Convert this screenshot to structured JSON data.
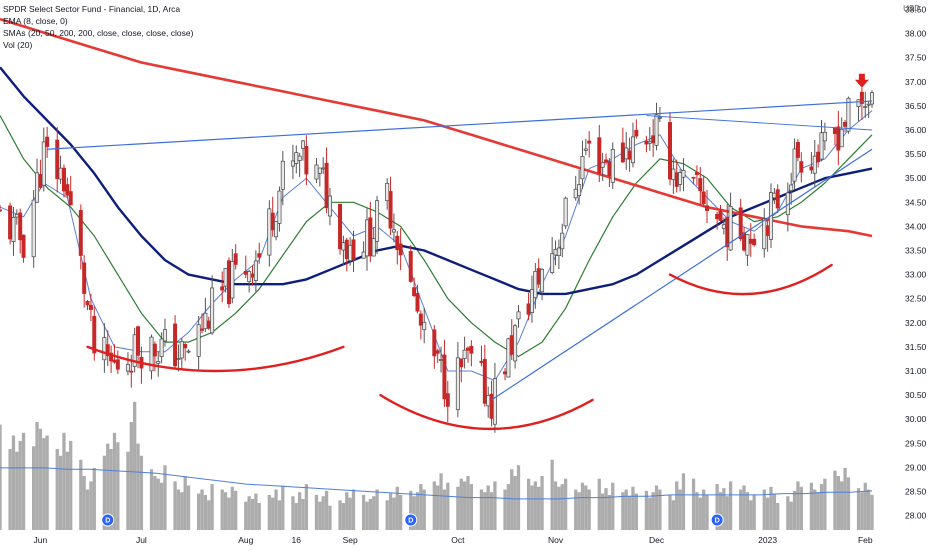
{
  "legend": {
    "title": "SPDR Select Sector Fund - Financial, 1D, Arca",
    "ema": "EMA (8, close, 0)",
    "smas": "SMAs (20, 50, 200, 200, close, close, close, close)",
    "vol": "Vol (20)"
  },
  "currency": "USD",
  "colors": {
    "up": "#e8e8e8",
    "down": "#c62828",
    "ema8": "#5b7fd6",
    "sma20": "#2e7d32",
    "sma50": "#0d1f7a",
    "sma200": "#e53935",
    "trendline": "#3d6fdb",
    "annotation": "#e02020",
    "volume": "#9e9e9e"
  },
  "chart_data": {
    "type": "candlestick",
    "symbol": "SPDR Select Sector Fund - Financial",
    "interval": "1D",
    "exchange": "Arca",
    "y_axis": {
      "min": 28.0,
      "max": 38.5,
      "ticks": [
        "28.00",
        "28.50",
        "29.00",
        "29.50",
        "30.00",
        "30.50",
        "31.00",
        "31.50",
        "32.00",
        "32.50",
        "33.00",
        "33.50",
        "34.00",
        "34.50",
        "35.00",
        "35.50",
        "36.00",
        "36.50",
        "37.00",
        "37.50",
        "38.00",
        "38.50"
      ]
    },
    "x_axis": {
      "range": [
        "2022-05-20",
        "2023-02-03"
      ],
      "ticks": [
        {
          "label": "Jun",
          "date": "2022-06-01"
        },
        {
          "label": "Jul",
          "date": "2022-07-01"
        },
        {
          "label": "Aug",
          "date": "2022-08-01"
        },
        {
          "label": "16",
          "date": "2022-08-16"
        },
        {
          "label": "Sep",
          "date": "2022-09-01"
        },
        {
          "label": "Oct",
          "date": "2022-10-03"
        },
        {
          "label": "Nov",
          "date": "2022-11-01"
        },
        {
          "label": "Dec",
          "date": "2022-12-01"
        },
        {
          "label": "2023",
          "date": "2023-01-03"
        },
        {
          "label": "Feb",
          "date": "2023-02-01"
        }
      ]
    },
    "close_path": [
      [
        "2022-05-20",
        34.2
      ],
      [
        "2022-05-27",
        33.7
      ],
      [
        "2022-06-02",
        35.5
      ],
      [
        "2022-06-08",
        35.0
      ],
      [
        "2022-06-13",
        33.2
      ],
      [
        "2022-06-17",
        31.4
      ],
      [
        "2022-06-23",
        31.1
      ],
      [
        "2022-06-30",
        31.5
      ],
      [
        "2022-07-08",
        31.5
      ],
      [
        "2022-07-14",
        31.3
      ],
      [
        "2022-07-22",
        32.3
      ],
      [
        "2022-07-29",
        33.0
      ],
      [
        "2022-08-05",
        33.4
      ],
      [
        "2022-08-12",
        35.0
      ],
      [
        "2022-08-17",
        35.4
      ],
      [
        "2022-08-24",
        34.9
      ],
      [
        "2022-08-31",
        33.6
      ],
      [
        "2022-09-07",
        33.8
      ],
      [
        "2022-09-12",
        34.6
      ],
      [
        "2022-09-16",
        33.6
      ],
      [
        "2022-09-23",
        31.6
      ],
      [
        "2022-09-30",
        30.7
      ],
      [
        "2022-10-06",
        31.2
      ],
      [
        "2022-10-13",
        30.4
      ],
      [
        "2022-10-19",
        31.6
      ],
      [
        "2022-10-26",
        32.8
      ],
      [
        "2022-11-02",
        33.8
      ],
      [
        "2022-11-10",
        35.6
      ],
      [
        "2022-11-17",
        35.3
      ],
      [
        "2022-11-23",
        35.7
      ],
      [
        "2022-12-01",
        36.0
      ],
      [
        "2022-12-08",
        34.9
      ],
      [
        "2022-12-15",
        34.6
      ],
      [
        "2022-12-21",
        34.0
      ],
      [
        "2022-12-29",
        33.9
      ],
      [
        "2023-01-05",
        34.4
      ],
      [
        "2023-01-12",
        35.5
      ],
      [
        "2023-01-19",
        35.5
      ],
      [
        "2023-01-26",
        36.2
      ],
      [
        "2023-02-02",
        36.7
      ]
    ],
    "series": [
      {
        "name": "EMA (8, close, 0)",
        "type": "line",
        "color": "#5b7fd6",
        "points": [
          [
            "2022-05-20",
            34.4
          ],
          [
            "2022-05-27",
            34.2
          ],
          [
            "2022-06-02",
            34.9
          ],
          [
            "2022-06-09",
            34.6
          ],
          [
            "2022-06-16",
            32.5
          ],
          [
            "2022-06-23",
            31.5
          ],
          [
            "2022-07-01",
            31.4
          ],
          [
            "2022-07-08",
            31.4
          ],
          [
            "2022-07-15",
            31.8
          ],
          [
            "2022-07-22",
            32.4
          ],
          [
            "2022-07-29",
            32.9
          ],
          [
            "2022-08-05",
            33.3
          ],
          [
            "2022-08-12",
            34.6
          ],
          [
            "2022-08-19",
            35.0
          ],
          [
            "2022-08-26",
            34.4
          ],
          [
            "2022-09-02",
            33.8
          ],
          [
            "2022-09-09",
            34.0
          ],
          [
            "2022-09-16",
            33.6
          ],
          [
            "2022-09-23",
            32.3
          ],
          [
            "2022-09-30",
            31.0
          ],
          [
            "2022-10-07",
            31.0
          ],
          [
            "2022-10-14",
            30.8
          ],
          [
            "2022-10-21",
            31.6
          ],
          [
            "2022-10-28",
            32.8
          ],
          [
            "2022-11-04",
            33.8
          ],
          [
            "2022-11-11",
            35.2
          ],
          [
            "2022-11-18",
            35.4
          ],
          [
            "2022-11-25",
            35.7
          ],
          [
            "2022-12-02",
            35.9
          ],
          [
            "2022-12-09",
            35.1
          ],
          [
            "2022-12-16",
            34.6
          ],
          [
            "2022-12-23",
            34.1
          ],
          [
            "2022-12-30",
            33.9
          ],
          [
            "2023-01-06",
            34.3
          ],
          [
            "2023-01-13",
            35.2
          ],
          [
            "2023-01-20",
            35.4
          ],
          [
            "2023-01-27",
            36.0
          ],
          [
            "2023-02-03",
            36.4
          ]
        ]
      },
      {
        "name": "SMA 20",
        "type": "line",
        "color": "#2e7d32",
        "points": [
          [
            "2022-05-20",
            36.3
          ],
          [
            "2022-05-27",
            35.4
          ],
          [
            "2022-06-03",
            34.8
          ],
          [
            "2022-06-10",
            34.4
          ],
          [
            "2022-06-17",
            33.8
          ],
          [
            "2022-06-24",
            33.0
          ],
          [
            "2022-07-01",
            32.2
          ],
          [
            "2022-07-08",
            31.6
          ],
          [
            "2022-07-15",
            31.6
          ],
          [
            "2022-07-22",
            31.8
          ],
          [
            "2022-07-29",
            32.2
          ],
          [
            "2022-08-05",
            32.7
          ],
          [
            "2022-08-12",
            33.4
          ],
          [
            "2022-08-19",
            34.1
          ],
          [
            "2022-08-26",
            34.5
          ],
          [
            "2022-09-02",
            34.5
          ],
          [
            "2022-09-09",
            34.3
          ],
          [
            "2022-09-16",
            34.0
          ],
          [
            "2022-09-23",
            33.3
          ],
          [
            "2022-09-30",
            32.5
          ],
          [
            "2022-10-07",
            32.0
          ],
          [
            "2022-10-14",
            31.6
          ],
          [
            "2022-10-21",
            31.3
          ],
          [
            "2022-10-28",
            31.6
          ],
          [
            "2022-11-04",
            32.3
          ],
          [
            "2022-11-11",
            33.3
          ],
          [
            "2022-11-18",
            34.2
          ],
          [
            "2022-11-25",
            34.9
          ],
          [
            "2022-12-02",
            35.4
          ],
          [
            "2022-12-09",
            35.3
          ],
          [
            "2022-12-16",
            35.0
          ],
          [
            "2022-12-23",
            34.4
          ],
          [
            "2022-12-30",
            34.1
          ],
          [
            "2023-01-06",
            34.2
          ],
          [
            "2023-01-13",
            34.5
          ],
          [
            "2023-01-20",
            34.9
          ],
          [
            "2023-01-27",
            35.4
          ],
          [
            "2023-02-03",
            35.9
          ]
        ]
      },
      {
        "name": "SMA 50",
        "type": "line",
        "color": "#0d1f7a",
        "points": [
          [
            "2022-05-20",
            37.3
          ],
          [
            "2022-05-27",
            36.7
          ],
          [
            "2022-06-03",
            36.2
          ],
          [
            "2022-06-10",
            35.7
          ],
          [
            "2022-06-17",
            35.1
          ],
          [
            "2022-06-24",
            34.4
          ],
          [
            "2022-07-01",
            33.8
          ],
          [
            "2022-07-08",
            33.3
          ],
          [
            "2022-07-15",
            33.0
          ],
          [
            "2022-07-22",
            32.9
          ],
          [
            "2022-07-29",
            32.8
          ],
          [
            "2022-08-05",
            32.8
          ],
          [
            "2022-08-12",
            32.8
          ],
          [
            "2022-08-19",
            32.9
          ],
          [
            "2022-08-26",
            33.1
          ],
          [
            "2022-09-02",
            33.3
          ],
          [
            "2022-09-09",
            33.5
          ],
          [
            "2022-09-16",
            33.6
          ],
          [
            "2022-09-23",
            33.5
          ],
          [
            "2022-09-30",
            33.3
          ],
          [
            "2022-10-07",
            33.1
          ],
          [
            "2022-10-14",
            32.9
          ],
          [
            "2022-10-21",
            32.7
          ],
          [
            "2022-10-28",
            32.6
          ],
          [
            "2022-11-04",
            32.6
          ],
          [
            "2022-11-11",
            32.7
          ],
          [
            "2022-11-18",
            32.8
          ],
          [
            "2022-11-25",
            33.0
          ],
          [
            "2022-12-02",
            33.3
          ],
          [
            "2022-12-09",
            33.6
          ],
          [
            "2022-12-16",
            33.9
          ],
          [
            "2022-12-23",
            34.2
          ],
          [
            "2022-12-30",
            34.4
          ],
          [
            "2023-01-06",
            34.6
          ],
          [
            "2023-01-13",
            34.8
          ],
          [
            "2023-01-20",
            35.0
          ],
          [
            "2023-01-27",
            35.1
          ],
          [
            "2023-02-03",
            35.2
          ]
        ]
      },
      {
        "name": "SMA 200",
        "type": "line",
        "color": "#e53935",
        "points": [
          [
            "2022-05-20",
            38.3
          ],
          [
            "2022-06-03",
            38.0
          ],
          [
            "2022-06-17",
            37.7
          ],
          [
            "2022-07-01",
            37.4
          ],
          [
            "2022-07-15",
            37.2
          ],
          [
            "2022-07-29",
            37.0
          ],
          [
            "2022-08-12",
            36.8
          ],
          [
            "2022-08-26",
            36.6
          ],
          [
            "2022-09-09",
            36.4
          ],
          [
            "2022-09-23",
            36.2
          ],
          [
            "2022-10-07",
            35.9
          ],
          [
            "2022-10-21",
            35.6
          ],
          [
            "2022-11-04",
            35.3
          ],
          [
            "2022-11-18",
            35.0
          ],
          [
            "2022-12-02",
            34.7
          ],
          [
            "2022-12-16",
            34.4
          ],
          [
            "2022-12-30",
            34.2
          ],
          [
            "2023-01-13",
            34.0
          ],
          [
            "2023-01-27",
            33.9
          ],
          [
            "2023-02-03",
            33.8
          ]
        ]
      }
    ],
    "trendlines": [
      {
        "from": [
          "2022-06-03",
          35.6
        ],
        "to": [
          "2023-02-03",
          36.6
        ]
      },
      {
        "from": [
          "2022-10-13",
          30.4
        ],
        "to": [
          "2023-02-03",
          35.6
        ]
      },
      {
        "from": [
          "2022-11-28",
          36.3
        ],
        "to": [
          "2023-02-03",
          36.0
        ]
      }
    ],
    "annotations": [
      {
        "kind": "arc",
        "from": [
          "2022-06-15",
          31.5
        ],
        "to": [
          "2022-08-30",
          31.5
        ],
        "low": 31.0
      },
      {
        "kind": "arc",
        "from": [
          "2022-09-10",
          30.5
        ],
        "to": [
          "2022-11-12",
          30.4
        ],
        "low": 29.8
      },
      {
        "kind": "arc",
        "from": [
          "2022-12-05",
          33.0
        ],
        "to": [
          "2023-01-22",
          33.2
        ],
        "low": 32.6
      },
      {
        "kind": "arrow",
        "at": [
          "2023-01-31",
          37.0
        ],
        "direction": "down"
      }
    ],
    "dividends": [
      "2022-06-21",
      "2022-09-19",
      "2022-12-19"
    ],
    "volume": {
      "name": "Vol (20)",
      "bars": [
        0.78,
        0.6,
        0.7,
        0.58,
        0.66,
        0.72,
        0.62,
        0.8,
        0.75,
        0.68,
        0.7,
        0.6,
        0.55,
        0.72,
        0.58,
        0.66,
        0.52,
        0.4,
        0.3,
        0.36,
        0.46,
        0.55,
        0.64,
        0.6,
        0.72,
        0.65,
        0.58,
        0.8,
        0.95,
        0.64,
        0.55,
        0.45,
        0.4,
        0.38,
        0.35,
        0.48,
        0.36,
        0.3,
        0.28,
        0.4,
        0.33,
        0.27,
        0.3,
        0.26,
        0.22,
        0.34,
        0.3,
        0.28,
        0.24,
        0.32,
        0.29,
        0.21,
        0.25,
        0.23,
        0.27,
        0.2,
        0.26,
        0.24,
        0.3,
        0.22,
        0.33,
        0.25,
        0.2,
        0.28,
        0.23,
        0.34,
        0.26,
        0.21,
        0.25,
        0.29,
        0.18,
        0.22,
        0.2,
        0.28,
        0.24,
        0.3,
        0.26,
        0.21,
        0.23,
        0.25,
        0.3,
        0.22,
        0.27,
        0.24,
        0.32,
        0.26,
        0.29,
        0.25,
        0.28,
        0.34,
        0.3,
        0.36,
        0.33,
        0.42,
        0.3,
        0.35,
        0.32,
        0.38,
        0.36,
        0.4,
        0.34,
        0.3,
        0.28,
        0.33,
        0.28,
        0.36,
        0.3,
        0.34,
        0.45,
        0.4,
        0.48,
        0.38,
        0.33,
        0.36,
        0.32,
        0.4,
        0.52,
        0.36,
        0.32,
        0.34,
        0.38,
        0.3,
        0.28,
        0.35,
        0.33,
        0.3,
        0.38,
        0.27,
        0.31,
        0.26,
        0.35,
        0.28,
        0.3,
        0.25,
        0.32,
        0.27,
        0.29,
        0.24,
        0.28,
        0.33,
        0.3,
        0.26,
        0.22,
        0.36,
        0.3,
        0.42,
        0.38,
        0.28,
        0.24,
        0.3,
        0.26,
        0.34,
        0.28,
        0.31,
        0.25,
        0.36,
        0.3,
        0.33,
        0.28,
        0.22,
        0.26,
        0.3,
        0.24,
        0.32,
        0.27,
        0.2,
        0.25,
        0.21,
        0.29,
        0.36,
        0.32,
        0.35,
        0.3,
        0.28,
        0.34,
        0.38,
        0.44,
        0.4,
        0.36,
        0.46,
        0.39,
        0.31,
        0.28,
        0.35,
        0.3,
        0.26,
        0.36,
        0.32,
        0.38,
        0.28,
        0.24,
        0.26
      ],
      "avg": [
        0.46,
        0.46,
        0.46,
        0.45,
        0.45,
        0.44,
        0.43,
        0.42,
        0.4,
        0.38,
        0.36,
        0.34,
        0.33,
        0.32,
        0.31,
        0.3,
        0.29,
        0.28,
        0.27,
        0.26,
        0.25,
        0.24,
        0.24,
        0.23,
        0.23,
        0.23,
        0.24,
        0.24,
        0.25,
        0.25,
        0.26,
        0.26,
        0.26,
        0.26,
        0.26,
        0.27,
        0.27,
        0.28,
        0.28,
        0.29
      ]
    }
  }
}
